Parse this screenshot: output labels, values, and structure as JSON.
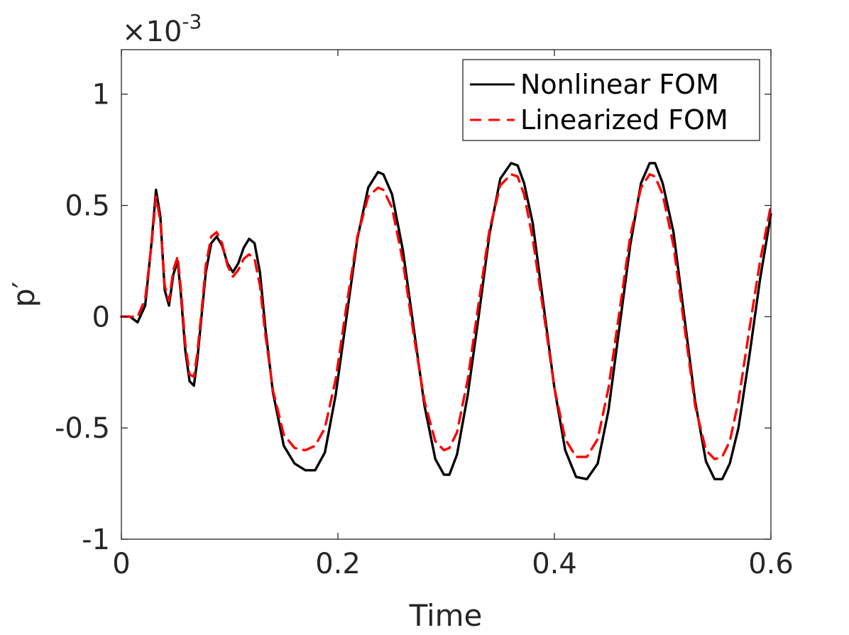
{
  "chart_data": {
    "type": "line",
    "title": "",
    "xlabel": "Time",
    "ylabel": "p′",
    "y_exponent_label": {
      "base": "×10",
      "exponent": "-3"
    },
    "xlim": [
      0,
      0.6
    ],
    "ylim": [
      -1,
      1.2
    ],
    "x_ticks": [
      0,
      0.2,
      0.4,
      0.6
    ],
    "x_tick_labels": [
      "0",
      "0.2",
      "0.4",
      "0.6"
    ],
    "y_ticks": [
      -1,
      -0.5,
      0,
      0.5,
      1
    ],
    "y_tick_labels": [
      "-1",
      "-0.5",
      "0",
      "0.5",
      "1"
    ],
    "grid": false,
    "legend_position": "top-right",
    "series": [
      {
        "name": "Nonlinear FOM",
        "color": "#000000",
        "dash": "solid",
        "x": [
          0,
          0.008,
          0.015,
          0.022,
          0.028,
          0.032,
          0.036,
          0.04,
          0.044,
          0.048,
          0.052,
          0.055,
          0.059,
          0.063,
          0.067,
          0.07,
          0.074,
          0.078,
          0.083,
          0.088,
          0.093,
          0.098,
          0.103,
          0.108,
          0.113,
          0.118,
          0.123,
          0.128,
          0.133,
          0.14,
          0.15,
          0.16,
          0.17,
          0.179,
          0.188,
          0.198,
          0.208,
          0.218,
          0.228,
          0.237,
          0.242,
          0.25,
          0.26,
          0.27,
          0.28,
          0.29,
          0.298,
          0.303,
          0.31,
          0.32,
          0.33,
          0.34,
          0.35,
          0.36,
          0.366,
          0.372,
          0.38,
          0.39,
          0.4,
          0.41,
          0.42,
          0.43,
          0.44,
          0.45,
          0.46,
          0.47,
          0.48,
          0.488,
          0.493,
          0.5,
          0.51,
          0.52,
          0.53,
          0.54,
          0.548,
          0.555,
          0.562,
          0.57,
          0.58,
          0.59,
          0.6
        ],
        "y": [
          0,
          0,
          -0.025,
          0.05,
          0.34,
          0.57,
          0.45,
          0.12,
          0.05,
          0.19,
          0.25,
          0.1,
          -0.15,
          -0.29,
          -0.31,
          -0.2,
          0.0,
          0.2,
          0.33,
          0.36,
          0.32,
          0.24,
          0.2,
          0.24,
          0.31,
          0.35,
          0.33,
          0.2,
          -0.05,
          -0.34,
          -0.58,
          -0.66,
          -0.69,
          -0.69,
          -0.61,
          -0.35,
          0.0,
          0.35,
          0.58,
          0.65,
          0.64,
          0.55,
          0.3,
          -0.05,
          -0.4,
          -0.64,
          -0.71,
          -0.71,
          -0.62,
          -0.35,
          0.0,
          0.37,
          0.62,
          0.69,
          0.68,
          0.6,
          0.42,
          0.05,
          -0.32,
          -0.6,
          -0.72,
          -0.73,
          -0.66,
          -0.42,
          -0.05,
          0.32,
          0.6,
          0.69,
          0.69,
          0.6,
          0.38,
          0.0,
          -0.38,
          -0.65,
          -0.73,
          -0.73,
          -0.66,
          -0.5,
          -0.18,
          0.17,
          0.46
        ]
      },
      {
        "name": "Linearized FOM",
        "color": "#ff0000",
        "dash": "dashed",
        "x": [
          0,
          0.008,
          0.015,
          0.022,
          0.028,
          0.032,
          0.036,
          0.04,
          0.044,
          0.048,
          0.052,
          0.055,
          0.059,
          0.063,
          0.067,
          0.07,
          0.074,
          0.078,
          0.083,
          0.088,
          0.093,
          0.098,
          0.103,
          0.108,
          0.113,
          0.118,
          0.123,
          0.128,
          0.133,
          0.14,
          0.15,
          0.16,
          0.17,
          0.179,
          0.188,
          0.198,
          0.208,
          0.218,
          0.228,
          0.237,
          0.242,
          0.25,
          0.26,
          0.27,
          0.28,
          0.29,
          0.298,
          0.303,
          0.31,
          0.32,
          0.33,
          0.34,
          0.35,
          0.36,
          0.366,
          0.372,
          0.38,
          0.39,
          0.4,
          0.41,
          0.42,
          0.43,
          0.44,
          0.45,
          0.46,
          0.47,
          0.48,
          0.488,
          0.493,
          0.5,
          0.51,
          0.52,
          0.53,
          0.54,
          0.548,
          0.555,
          0.562,
          0.57,
          0.58,
          0.59,
          0.6
        ],
        "y": [
          0,
          0,
          0.0,
          0.08,
          0.33,
          0.54,
          0.43,
          0.14,
          0.07,
          0.21,
          0.27,
          0.12,
          -0.12,
          -0.26,
          -0.27,
          -0.17,
          0.02,
          0.23,
          0.36,
          0.38,
          0.33,
          0.23,
          0.18,
          0.21,
          0.26,
          0.28,
          0.26,
          0.14,
          -0.08,
          -0.33,
          -0.53,
          -0.59,
          -0.6,
          -0.58,
          -0.5,
          -0.28,
          0.05,
          0.36,
          0.54,
          0.58,
          0.57,
          0.49,
          0.25,
          -0.08,
          -0.38,
          -0.56,
          -0.6,
          -0.59,
          -0.52,
          -0.28,
          0.06,
          0.39,
          0.59,
          0.64,
          0.63,
          0.55,
          0.35,
          0.02,
          -0.32,
          -0.55,
          -0.63,
          -0.63,
          -0.55,
          -0.32,
          0.02,
          0.36,
          0.58,
          0.64,
          0.63,
          0.55,
          0.32,
          -0.04,
          -0.4,
          -0.6,
          -0.64,
          -0.63,
          -0.56,
          -0.38,
          -0.06,
          0.25,
          0.5
        ]
      }
    ]
  }
}
